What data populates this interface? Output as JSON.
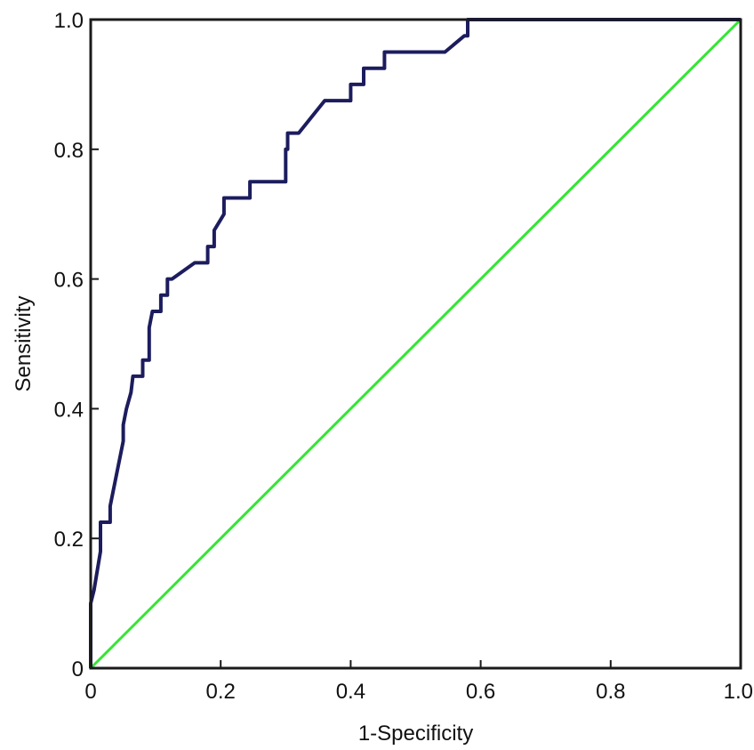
{
  "chart_data": {
    "type": "line",
    "title": "",
    "xlabel": "1-Specificity",
    "ylabel": "Sensitivity",
    "xlim": [
      0,
      1
    ],
    "ylim": [
      0,
      1
    ],
    "x_ticks": [
      0,
      0.2,
      0.4,
      0.6,
      0.8,
      1.0
    ],
    "x_tick_labels": [
      "0",
      "0.2",
      "0.4",
      "0.6",
      "0.8",
      "1.0"
    ],
    "y_ticks": [
      0,
      0.2,
      0.4,
      0.6,
      0.8,
      1.0
    ],
    "y_tick_labels": [
      "0",
      "0.2",
      "0.4",
      "0.6",
      "0.8",
      "1.0"
    ],
    "grid": false,
    "legend": "none",
    "series": [
      {
        "color": "#1c1c5e",
        "x": [
          0.0,
          0.0,
          0.005,
          0.015,
          0.015,
          0.03,
          0.03,
          0.05,
          0.05,
          0.055,
          0.055,
          0.062,
          0.062,
          0.065,
          0.065,
          0.08,
          0.08,
          0.09,
          0.09,
          0.095,
          0.095,
          0.108,
          0.108,
          0.118,
          0.118,
          0.125,
          0.125,
          0.16,
          0.16,
          0.18,
          0.18,
          0.19,
          0.19,
          0.205,
          0.205,
          0.245,
          0.245,
          0.3,
          0.3,
          0.303,
          0.303,
          0.32,
          0.32,
          0.36,
          0.36,
          0.4,
          0.4,
          0.42,
          0.42,
          0.452,
          0.452,
          0.465,
          0.465,
          0.545,
          0.545,
          0.575,
          0.575,
          0.58,
          0.58,
          0.582,
          1.0
        ],
        "y": [
          0.0,
          0.1,
          0.12,
          0.18,
          0.225,
          0.225,
          0.25,
          0.35,
          0.375,
          0.4,
          0.4,
          0.425,
          0.425,
          0.45,
          0.45,
          0.45,
          0.475,
          0.475,
          0.525,
          0.55,
          0.55,
          0.55,
          0.575,
          0.575,
          0.6,
          0.6,
          0.6,
          0.625,
          0.625,
          0.625,
          0.65,
          0.65,
          0.675,
          0.7,
          0.725,
          0.725,
          0.75,
          0.75,
          0.8,
          0.8,
          0.825,
          0.825,
          0.825,
          0.875,
          0.875,
          0.875,
          0.9,
          0.9,
          0.925,
          0.925,
          0.95,
          0.95,
          0.95,
          0.95,
          0.95,
          0.975,
          0.975,
          0.975,
          1.0,
          1.0,
          1.0
        ]
      },
      {
        "color": "#33e633",
        "x": [
          0,
          1
        ],
        "y": [
          0,
          1
        ]
      }
    ]
  }
}
